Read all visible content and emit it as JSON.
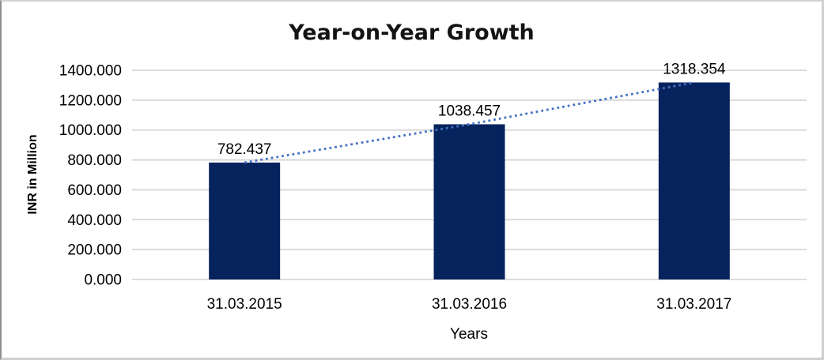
{
  "chart_data": {
    "type": "bar",
    "title": "Year-on-Year Growth",
    "xlabel": "Years",
    "ylabel": "INR in Million",
    "categories": [
      "31.03.2015",
      "31.03.2016",
      "31.03.2017"
    ],
    "values": [
      782.437,
      1038.457,
      1318.354
    ],
    "data_labels": [
      "782.437",
      "1038.457",
      "1318.354"
    ],
    "ylim": [
      0,
      1400
    ],
    "ytick_step": 200,
    "ytick_labels": [
      "0.000",
      "200.000",
      "400.000",
      "600.000",
      "800.000",
      "1000.000",
      "1200.000",
      "1400.000"
    ],
    "grid": true,
    "legend": "none",
    "trendline": true,
    "colors": {
      "bar": "#07235E",
      "trendline": "#4472C4",
      "gridline": "#D6D6D6",
      "text": "#000000",
      "title": "#141414",
      "background": "#FFFFFF",
      "frame_border": "#CFCFCF"
    }
  }
}
